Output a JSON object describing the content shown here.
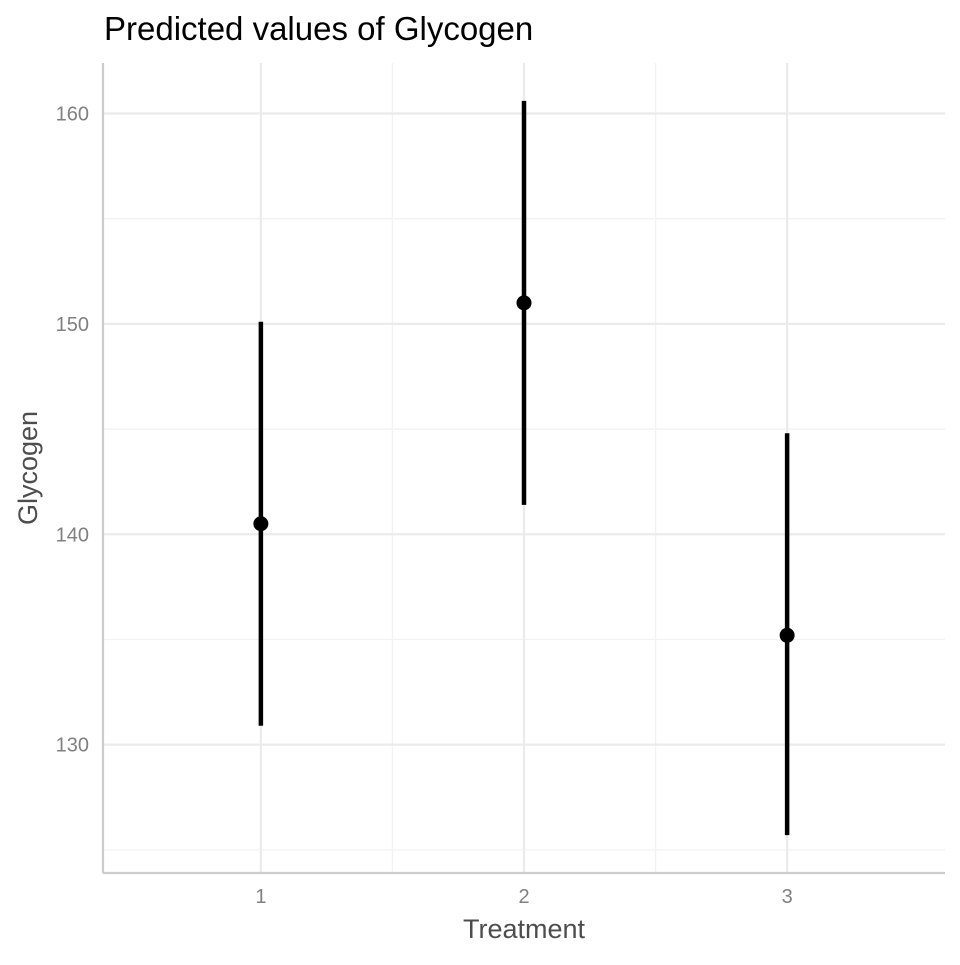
{
  "chart_data": {
    "type": "scatter",
    "title": "Predicted values of Glycogen",
    "xlabel": "Treatment",
    "ylabel": "Glycogen",
    "categories": [
      "1",
      "2",
      "3"
    ],
    "series": [
      {
        "values": [
          140.5,
          151.0,
          135.2
        ],
        "lower": [
          130.9,
          141.4,
          125.7
        ],
        "upper": [
          150.1,
          160.6,
          144.8
        ]
      }
    ],
    "yticks": [
      130,
      140,
      150,
      160
    ],
    "ylim": [
      123.9,
      162.4
    ],
    "grid": true,
    "legend": "none",
    "colors": {
      "marks": "#000000",
      "grid": "#ebebeb",
      "axis": "#cccccc",
      "tick_text": "#808080",
      "axis_title": "#4d4d4d",
      "title": "#000000"
    }
  }
}
